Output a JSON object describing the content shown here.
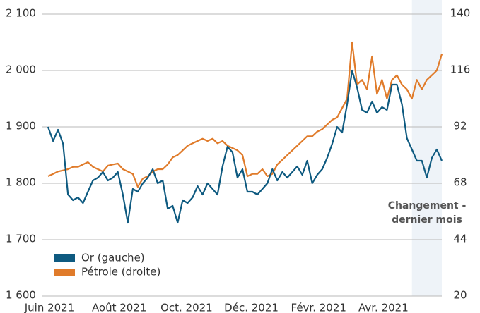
{
  "chart_data": {
    "type": "line",
    "x": [
      0,
      1,
      2,
      3,
      4,
      5,
      6,
      7,
      8,
      9,
      10,
      11,
      12,
      13,
      14,
      15,
      16,
      17,
      18,
      19,
      20,
      21,
      22,
      23,
      24,
      25,
      26,
      27,
      28,
      29,
      30,
      31,
      32,
      33,
      34,
      35,
      36,
      37,
      38,
      39,
      40,
      41,
      42,
      43,
      44,
      45,
      46,
      47,
      48,
      49,
      50,
      51,
      52,
      53,
      54,
      55,
      56,
      57,
      58,
      59,
      60,
      61,
      62,
      63,
      64,
      65,
      66,
      67,
      68,
      69,
      70,
      71,
      72,
      73,
      74,
      75,
      76,
      77,
      78,
      79
    ],
    "xlim": [
      0,
      79
    ],
    "xticks": [
      {
        "value": 0,
        "label": "Juin 2021"
      },
      {
        "value": 14,
        "label": "Août 2021"
      },
      {
        "value": 27.5,
        "label": "Oct. 2021"
      },
      {
        "value": 40.5,
        "label": "Déc. 2021"
      },
      {
        "value": 54,
        "label": "Févr. 2021"
      },
      {
        "value": 67,
        "label": "Avr. 2021"
      }
    ],
    "ylim": [
      1600,
      2100
    ],
    "yticks": [
      {
        "value": 1600,
        "label": "1 600"
      },
      {
        "value": 1700,
        "label": "1 700"
      },
      {
        "value": 1800,
        "label": "1 800"
      },
      {
        "value": 1900,
        "label": "1 900"
      },
      {
        "value": 2000,
        "label": "2 000"
      },
      {
        "value": 2100,
        "label": "2 100"
      }
    ],
    "y2lim": [
      20,
      140
    ],
    "y2ticks": [
      20,
      44,
      68,
      92,
      116,
      140
    ],
    "grid": true,
    "highlight_xlim": [
      73,
      79
    ],
    "annotation": [
      "Changement -",
      "dernier mois"
    ],
    "legend": "lower left",
    "series": [
      {
        "name": "Or (gauche)",
        "color": "#0e5a80",
        "values": [
          1900,
          1875,
          1895,
          1870,
          1780,
          1770,
          1775,
          1765,
          1785,
          1805,
          1810,
          1820,
          1805,
          1810,
          1820,
          1780,
          1730,
          1790,
          1785,
          1800,
          1810,
          1825,
          1800,
          1805,
          1755,
          1760,
          1730,
          1770,
          1765,
          1775,
          1795,
          1780,
          1800,
          1790,
          1780,
          1830,
          1865,
          1855,
          1810,
          1825,
          1785,
          1785,
          1780,
          1790,
          1800,
          1825,
          1805,
          1820,
          1810,
          1820,
          1830,
          1815,
          1840,
          1800,
          1815,
          1825,
          1845,
          1870,
          1900,
          1890,
          1940,
          2000,
          1970,
          1930,
          1925,
          1945,
          1925,
          1935,
          1930,
          1975,
          1975,
          1940,
          1880,
          1860,
          1840,
          1840,
          1810,
          1845,
          1860,
          1840
        ]
      },
      {
        "name": "Pétrole (droite)",
        "color": "#e07b2a",
        "axis": "y2",
        "values": [
          71,
          72,
          73,
          73.5,
          74,
          75,
          75,
          76,
          77,
          75,
          74,
          73,
          75.5,
          76,
          76.4,
          74,
          73,
          72,
          66.5,
          70,
          71,
          73,
          74,
          74,
          76,
          79,
          80,
          82,
          84,
          85,
          86,
          87,
          86,
          87,
          85,
          86,
          84,
          83,
          82,
          80,
          71,
          72,
          72,
          74,
          71,
          72,
          76,
          78,
          80,
          82,
          84,
          86,
          88,
          88,
          90,
          91,
          93,
          95,
          96,
          100,
          104,
          128,
          110,
          112,
          108,
          122,
          106,
          112,
          104,
          112,
          114,
          110,
          108,
          104,
          112,
          108,
          112,
          114,
          116,
          123
        ]
      }
    ]
  }
}
